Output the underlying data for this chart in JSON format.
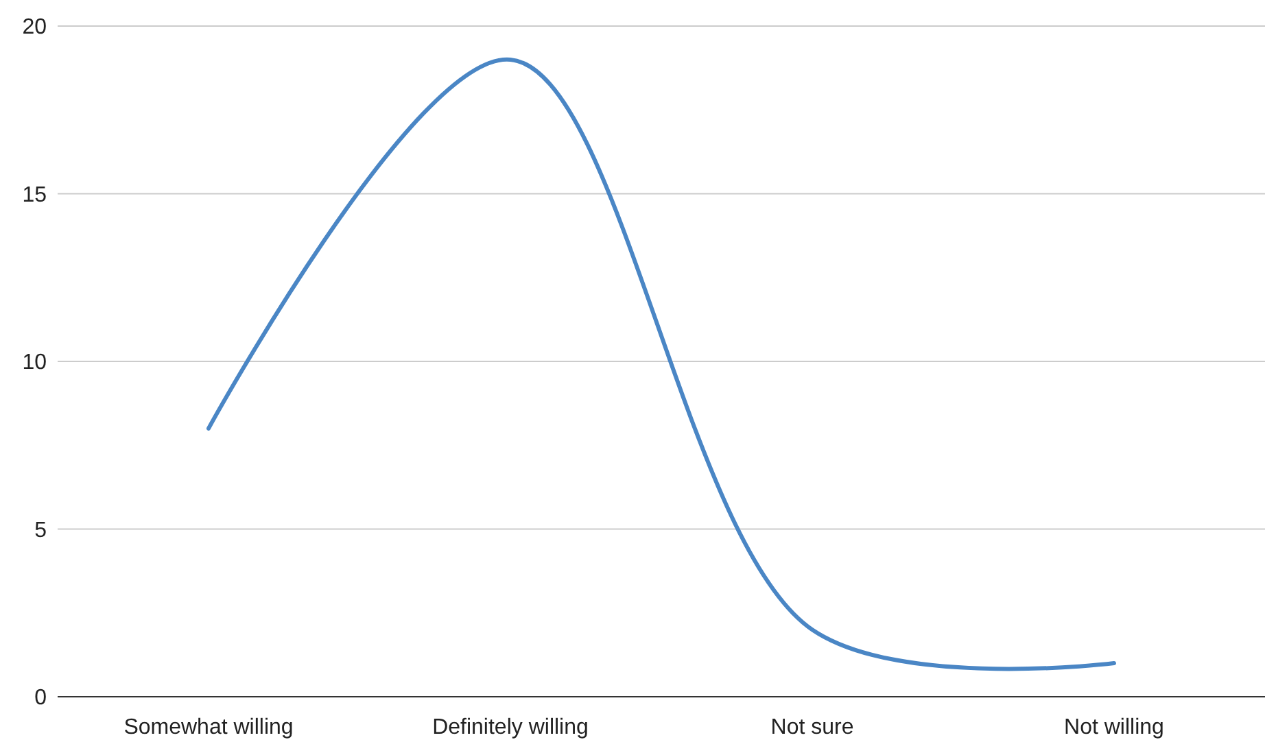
{
  "chart_data": {
    "type": "line",
    "categories": [
      "Somewhat willing",
      "Definitely willing",
      "Not sure",
      "Not willing"
    ],
    "series": [
      {
        "color": "#4a86c5",
        "values": [
          8,
          19,
          2,
          1
        ]
      }
    ],
    "ylim": [
      0,
      20
    ],
    "yticks": [
      0,
      5,
      10,
      15,
      20
    ],
    "grid": "y",
    "marker": "none",
    "line_style": "solid"
  }
}
